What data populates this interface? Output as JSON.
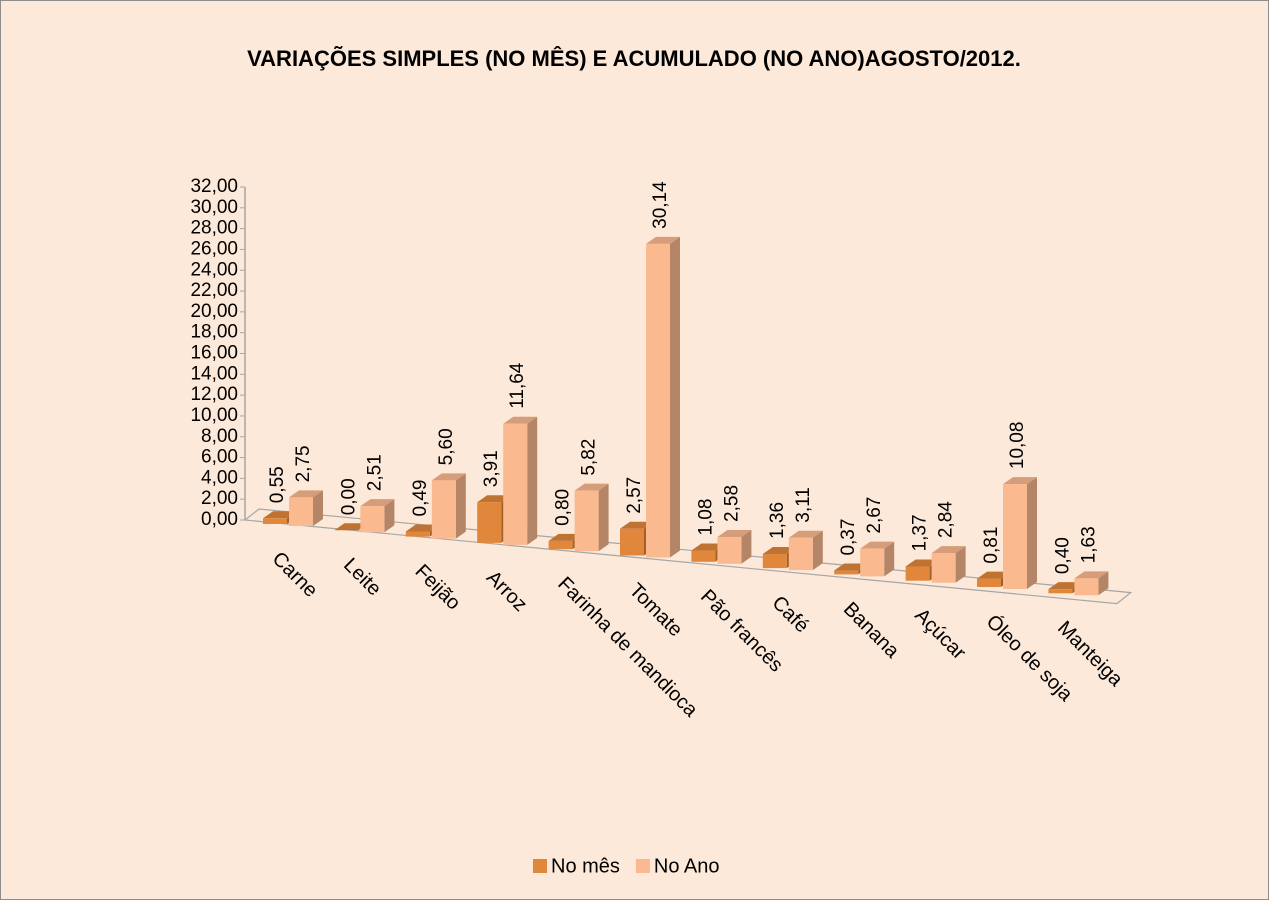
{
  "chart_data": {
    "type": "bar3d",
    "title": "VARIAÇÕES SIMPLES (NO MÊS) E ACUMULADO (NO ANO)AGOSTO/2012.",
    "categories": [
      "Carne",
      "Leite",
      "Feijão",
      "Arroz",
      "Farinha de mandioca",
      "Tomate",
      "Pão francês",
      "Café",
      "Banana",
      "Açúcar",
      "Óleo de soja",
      "Manteiga"
    ],
    "series": [
      {
        "name": "No mês",
        "color": "#e0873b",
        "values": [
          0.55,
          0.0,
          0.49,
          3.91,
          0.8,
          2.57,
          1.08,
          1.36,
          0.37,
          1.37,
          0.81,
          0.4
        ],
        "value_labels": [
          "0,55",
          "0,00",
          "0,49",
          "3,91",
          "0,80",
          "2,57",
          "1,08",
          "1,36",
          "0,37",
          "1,37",
          "0,81",
          "0,40"
        ]
      },
      {
        "name": "No Ano",
        "color": "#fab98f",
        "values": [
          2.75,
          2.51,
          5.6,
          11.64,
          5.82,
          30.14,
          2.58,
          3.11,
          2.67,
          2.84,
          10.08,
          1.63
        ],
        "value_labels": [
          "2,75",
          "2,51",
          "5,60",
          "11,64",
          "5,82",
          "30,14",
          "2,58",
          "3,11",
          "2,67",
          "2,84",
          "10,08",
          "1,63"
        ]
      }
    ],
    "ylim": [
      0,
      32
    ],
    "yticks": [
      {
        "value": 0,
        "label": "0,00"
      },
      {
        "value": 2,
        "label": "2,00"
      },
      {
        "value": 4,
        "label": "4,00"
      },
      {
        "value": 6,
        "label": "6,00"
      },
      {
        "value": 8,
        "label": "8,00"
      },
      {
        "value": 10,
        "label": "10,00"
      },
      {
        "value": 12,
        "label": "12,00"
      },
      {
        "value": 14,
        "label": "14,00"
      },
      {
        "value": 16,
        "label": "16,00"
      },
      {
        "value": 18,
        "label": "18,00"
      },
      {
        "value": 20,
        "label": "20,00"
      },
      {
        "value": 22,
        "label": "22,00"
      },
      {
        "value": 24,
        "label": "24,00"
      },
      {
        "value": 26,
        "label": "26,00"
      },
      {
        "value": 28,
        "label": "28,00"
      },
      {
        "value": 30,
        "label": "30,00"
      },
      {
        "value": 32,
        "label": "32,00"
      }
    ],
    "legend": "bottom"
  }
}
